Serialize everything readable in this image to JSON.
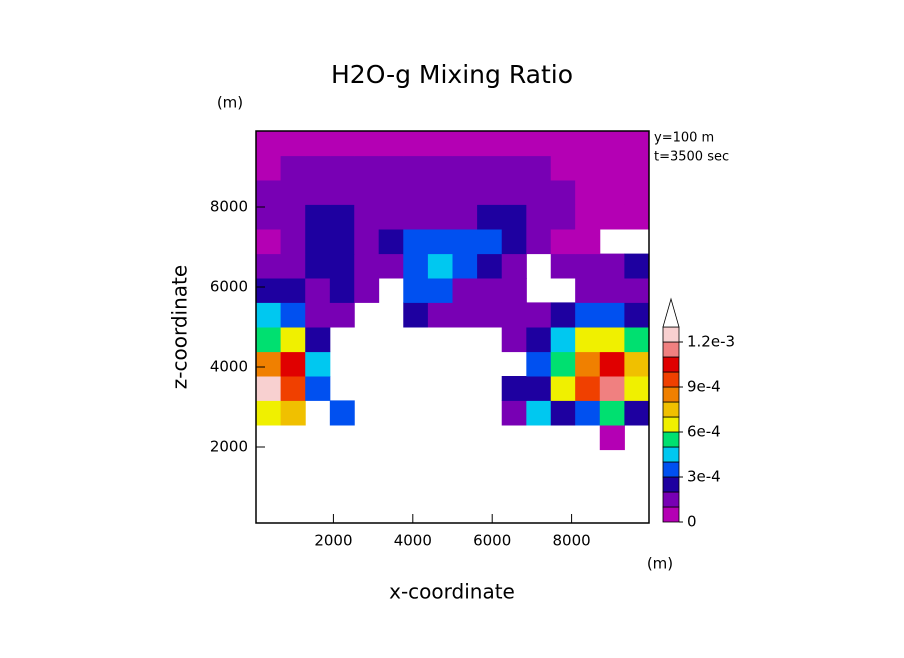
{
  "chart_data": {
    "type": "contour",
    "title": "H2O-g Mixing Ratio",
    "x_label": "x-coordinate",
    "y_label": "z-coordinate",
    "x_unit": "(m)",
    "y_unit": "(m)",
    "annotations": [
      "y=100 m",
      "t=3500 sec"
    ],
    "xlim": [
      50,
      9950
    ],
    "ylim": [
      100,
      9900
    ],
    "xticks": [
      2000,
      4000,
      6000,
      8000
    ],
    "yticks": [
      2000,
      4000,
      6000,
      8000
    ],
    "x": [
      360,
      980,
      1600,
      2220,
      2830,
      3450,
      4070,
      4690,
      5310,
      5930,
      6550,
      7170,
      7780,
      8400,
      9020,
      9640
    ],
    "y": [
      410,
      1020,
      1630,
      2240,
      2860,
      3470,
      4080,
      4690,
      5310,
      5920,
      6530,
      7140,
      7760,
      8370,
      8980,
      9590
    ],
    "z": [
      [
        0,
        0,
        0,
        0,
        0,
        0,
        0,
        0,
        0,
        0,
        0,
        0,
        0,
        0,
        0,
        0
      ],
      [
        0,
        0,
        0,
        0,
        0,
        0,
        0,
        0,
        0,
        0,
        0,
        0,
        0,
        0,
        0,
        0
      ],
      [
        0,
        0,
        0,
        0,
        0,
        0,
        0,
        0,
        0,
        0,
        0,
        0,
        0,
        0,
        0,
        0
      ],
      [
        0,
        0,
        0,
        0,
        0,
        0,
        0,
        0,
        0,
        0,
        0,
        0,
        0,
        0,
        5e-05,
        0
      ],
      [
        0.00065,
        0.00075,
        0,
        0.00035,
        0,
        0,
        0,
        0,
        0,
        0,
        0.00015,
        0.00045,
        0.00025,
        0.00035,
        0.00055,
        0.00025
      ],
      [
        0.00125,
        0.00095,
        0.00035,
        0,
        0,
        0,
        0,
        0,
        0,
        0,
        0.00025,
        0.00025,
        0.00065,
        0.00095,
        0.00115,
        0.00065
      ],
      [
        0.00085,
        0.00105,
        0.00045,
        0,
        0,
        0,
        0,
        0,
        0,
        0,
        0,
        0.00035,
        0.00055,
        0.00085,
        0.00105,
        0.00075
      ],
      [
        0.00055,
        0.00065,
        0.00025,
        0,
        0,
        0,
        0,
        0,
        0,
        0,
        0.00015,
        0.00025,
        0.00045,
        0.00065,
        0.00065,
        0.00055
      ],
      [
        0.00045,
        0.00035,
        0.00015,
        0.00015,
        0,
        0,
        0.00025,
        0.00015,
        0.00015,
        0.00015,
        0.00015,
        0.00015,
        0.00025,
        0.00035,
        0.00035,
        0.00025
      ],
      [
        0.00025,
        0.00025,
        0.00015,
        0.00025,
        0.00015,
        0,
        0.00035,
        0.00035,
        0.00015,
        0.00015,
        0.00015,
        0,
        0,
        0.00015,
        0.00015,
        0.00015
      ],
      [
        0.00015,
        0.00015,
        0.00025,
        0.00025,
        0.00015,
        0.00015,
        0.00035,
        0.00045,
        0.00035,
        0.00025,
        0.00015,
        0,
        0.00015,
        0.00015,
        0.00015,
        0.00025
      ],
      [
        5e-05,
        0.00015,
        0.00025,
        0.00025,
        0.00015,
        0.00025,
        0.00035,
        0.00035,
        0.00035,
        0.00035,
        0.00025,
        0.00015,
        5e-05,
        5e-05,
        0,
        0
      ],
      [
        0.00015,
        0.00015,
        0.00025,
        0.00025,
        0.00015,
        0.00015,
        0.00015,
        0.00015,
        0.00015,
        0.00025,
        0.00025,
        0.00015,
        0.00015,
        5e-05,
        5e-05,
        5e-05
      ],
      [
        0.00015,
        0.00015,
        0.00015,
        0.00015,
        0.00015,
        0.00015,
        0.00015,
        0.00015,
        0.00015,
        0.00015,
        0.00015,
        0.00015,
        0.00015,
        5e-05,
        5e-05,
        5e-05
      ],
      [
        5e-05,
        0.00015,
        0.00015,
        0.00015,
        0.00015,
        0.00015,
        0.00015,
        0.00015,
        0.00015,
        0.00015,
        0.00015,
        0.00015,
        5e-05,
        5e-05,
        5e-05,
        5e-05
      ],
      [
        5e-05,
        5e-05,
        5e-05,
        5e-05,
        5e-05,
        5e-05,
        5e-05,
        5e-05,
        5e-05,
        5e-05,
        5e-05,
        5e-05,
        5e-05,
        5e-05,
        5e-05,
        5e-05
      ]
    ],
    "colorbar": {
      "levels": [
        0,
        0.0001,
        0.0002,
        0.0003,
        0.0004,
        0.0005,
        0.0006,
        0.0007,
        0.0008,
        0.0009,
        0.001,
        0.0011,
        0.0012,
        0.0013
      ],
      "colors": [
        "#b400b4",
        "#7800b4",
        "#1e00a0",
        "#0050f0",
        "#00c8f0",
        "#00e070",
        "#f0f000",
        "#f0c000",
        "#f08000",
        "#f04000",
        "#e00000",
        "#f08080",
        "#f8d0d0"
      ],
      "extend_color": "#ffffff",
      "ticks": [
        0,
        {
          "value": 0.0003,
          "label": "3e-4"
        },
        {
          "value": 0.0006,
          "label": "6e-4"
        },
        {
          "value": 0.0009,
          "label": "9e-4"
        },
        {
          "value": 0.0012,
          "label": "1.2e-3"
        }
      ]
    }
  }
}
